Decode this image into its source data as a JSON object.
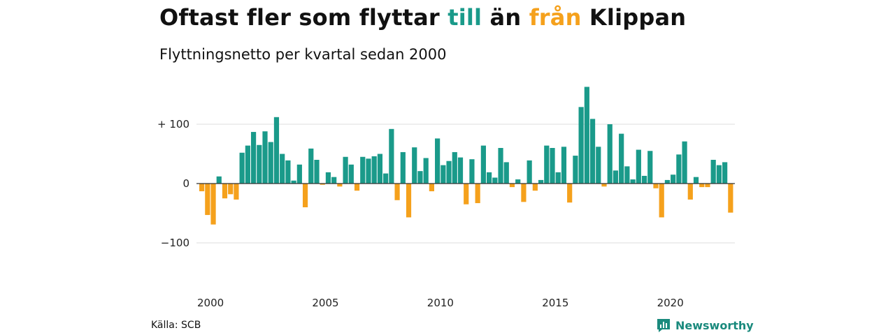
{
  "header": {
    "title_parts": [
      "Oftast fler som flyttar ",
      "till",
      " än ",
      "från",
      " Klippan"
    ],
    "subtitle": "Flyttningsnetto per kvartal sedan 2000"
  },
  "footer": {
    "source": "Källa: SCB",
    "brand": "Newsworthy",
    "brand_icon": "bar-chart-icon"
  },
  "colors": {
    "positive": "#1a9a8a",
    "negative": "#f5a11c",
    "grid": "#dddddd",
    "zero_line": "#333333",
    "brand": "#1a8a7d"
  },
  "chart_data": {
    "type": "bar",
    "title": "Oftast fler som flyttar till än från Klippan",
    "subtitle": "Flyttningsnetto per kvartal sedan 2000",
    "xlabel": "",
    "ylabel": "",
    "x_tick_labels": [
      "2000",
      "2005",
      "2010",
      "2015",
      "2020"
    ],
    "y_tick_values": [
      100,
      0,
      -100
    ],
    "y_tick_labels": [
      "+ 100",
      "0",
      "−100"
    ],
    "ylim": [
      -150,
      165
    ],
    "grid": true,
    "legend": "none",
    "start": "2000 Q1",
    "frequency": "quarterly",
    "values": [
      -13,
      -53,
      -69,
      12,
      -25,
      -18,
      -27,
      52,
      64,
      87,
      65,
      88,
      70,
      112,
      50,
      39,
      5,
      32,
      -40,
      59,
      40,
      -2,
      19,
      11,
      -5,
      45,
      32,
      -12,
      45,
      42,
      46,
      50,
      17,
      92,
      -28,
      53,
      -57,
      61,
      21,
      43,
      -13,
      76,
      31,
      38,
      53,
      44,
      -35,
      41,
      -33,
      64,
      19,
      10,
      60,
      36,
      -6,
      7,
      -31,
      39,
      -12,
      6,
      64,
      60,
      19,
      62,
      -32,
      47,
      129,
      163,
      109,
      62,
      -5,
      100,
      22,
      84,
      29,
      7,
      57,
      13,
      55,
      -8,
      -57,
      6,
      15,
      49,
      71,
      -27,
      11,
      -6,
      -6,
      40,
      31,
      36,
      -49
    ]
  }
}
